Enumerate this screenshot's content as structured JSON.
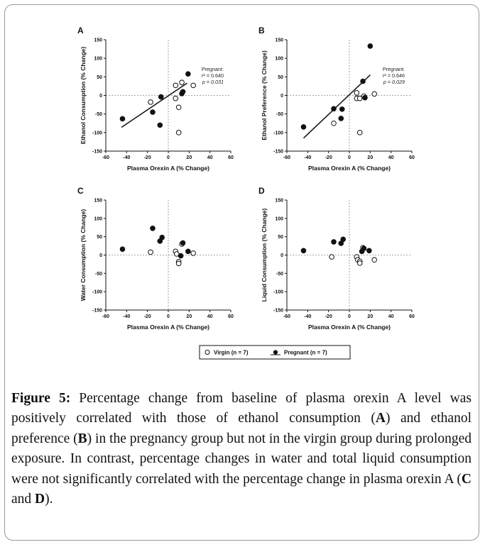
{
  "figure": {
    "x_axis_label": "Plasma Orexin A (% Change)",
    "legend": {
      "virgin": "Virgin (n = 7)",
      "pregnant": "Pregnant (n = 7)"
    }
  },
  "caption": {
    "label": "Figure 5:",
    "t1": " Percentage change from baseline of plasma orexin A level was positively correlated with those of ethanol consumption (",
    "a": "A",
    "t2": ") and ethanol preference (",
    "b": "B",
    "t3": ") in the pregnancy group but not in the virgin group during prolonged exposure. In contrast, percentage changes in water and total liquid consumption were not significantly correlated with the percentage change in plasma orexin A (",
    "c": "C",
    "t4": " and ",
    "d": "D",
    "t5": ")."
  },
  "chart_data": [
    {
      "type": "scatter",
      "panel": "A",
      "xlabel": "Plasma Orexin A (% Change)",
      "ylabel": "Ethanol Consumption (% Change)",
      "xlim": [
        -60,
        60
      ],
      "ylim": [
        -150,
        150
      ],
      "xticks": [
        -60,
        -40,
        -20,
        0,
        20,
        40,
        60
      ],
      "yticks": [
        -150,
        -100,
        -50,
        0,
        50,
        100,
        150
      ],
      "annotation": [
        "Pregnant:",
        "r² = 0.640",
        "p = 0.031"
      ],
      "series": [
        {
          "name": "Virgin (n = 7)",
          "marker": "open",
          "points": [
            [
              -17,
              -18
            ],
            [
              7,
              27
            ],
            [
              7,
              -8
            ],
            [
              10,
              -32
            ],
            [
              13,
              35
            ],
            [
              24,
              27
            ],
            [
              10,
              -100
            ]
          ]
        },
        {
          "name": "Pregnant (n = 7)",
          "marker": "filled",
          "points": [
            [
              -44,
              -63
            ],
            [
              -15,
              -45
            ],
            [
              -7,
              -4
            ],
            [
              -8,
              -80
            ],
            [
              13,
              5
            ],
            [
              14,
              10
            ],
            [
              19,
              58
            ]
          ]
        }
      ],
      "fit": {
        "series": "Pregnant (n = 7)",
        "from": [
          -45,
          -86
        ],
        "to": [
          18,
          33
        ]
      }
    },
    {
      "type": "scatter",
      "panel": "B",
      "xlabel": "Plasma Orexin A (% Change)",
      "ylabel": "Ethanol Preference (% Change)",
      "xlim": [
        -60,
        60
      ],
      "ylim": [
        -150,
        150
      ],
      "xticks": [
        -60,
        -40,
        -20,
        0,
        20,
        40,
        60
      ],
      "yticks": [
        -150,
        -100,
        -50,
        0,
        50,
        100,
        150
      ],
      "annotation": [
        "Pregnant:",
        "r² = 0.646",
        "p = 0.029"
      ],
      "series": [
        {
          "name": "Virgin (n = 7)",
          "marker": "open",
          "points": [
            [
              -15,
              -75
            ],
            [
              7,
              7
            ],
            [
              7,
              -8
            ],
            [
              10,
              -8
            ],
            [
              14,
              -2
            ],
            [
              24,
              4
            ],
            [
              10,
              -100
            ]
          ]
        },
        {
          "name": "Pregnant (n = 7)",
          "marker": "filled",
          "points": [
            [
              -44,
              -85
            ],
            [
              -15,
              -36
            ],
            [
              -8,
              -62
            ],
            [
              -7,
              -37
            ],
            [
              13,
              38
            ],
            [
              15,
              -6
            ],
            [
              20,
              133
            ]
          ]
        }
      ],
      "fit": {
        "series": "Pregnant (n = 7)",
        "from": [
          -44,
          -115
        ],
        "to": [
          20,
          55
        ]
      }
    },
    {
      "type": "scatter",
      "panel": "C",
      "xlabel": "Plasma Orexin A (% Change)",
      "ylabel": "Water Consumption (% Change)",
      "xlim": [
        -60,
        60
      ],
      "ylim": [
        -150,
        150
      ],
      "xticks": [
        -60,
        -40,
        -20,
        0,
        20,
        40,
        60
      ],
      "yticks": [
        -150,
        -100,
        -50,
        0,
        50,
        100,
        150
      ],
      "series": [
        {
          "name": "Virgin (n = 7)",
          "marker": "open",
          "points": [
            [
              -17,
              8
            ],
            [
              7,
              10
            ],
            [
              8,
              3
            ],
            [
              10,
              -18
            ],
            [
              10,
              -23
            ],
            [
              13,
              30
            ],
            [
              24,
              5
            ]
          ]
        },
        {
          "name": "Pregnant (n = 7)",
          "marker": "filled",
          "points": [
            [
              -44,
              16
            ],
            [
              -15,
              73
            ],
            [
              -8,
              38
            ],
            [
              -6,
              48
            ],
            [
              12,
              -2
            ],
            [
              14,
              33
            ],
            [
              19,
              10
            ]
          ]
        }
      ]
    },
    {
      "type": "scatter",
      "panel": "D",
      "xlabel": "Plasma Orexin A (% Change)",
      "ylabel": "Liquid Consumption (% Change)",
      "xlim": [
        -60,
        60
      ],
      "ylim": [
        -150,
        150
      ],
      "xticks": [
        -60,
        -40,
        -20,
        0,
        20,
        40,
        60
      ],
      "yticks": [
        -150,
        -100,
        -50,
        0,
        50,
        100,
        150
      ],
      "series": [
        {
          "name": "Virgin (n = 7)",
          "marker": "open",
          "points": [
            [
              -17,
              -5
            ],
            [
              7,
              -5
            ],
            [
              8,
              -13
            ],
            [
              10,
              -17
            ],
            [
              10,
              -22
            ],
            [
              13,
              20
            ],
            [
              24,
              -13
            ]
          ]
        },
        {
          "name": "Pregnant (n = 7)",
          "marker": "filled",
          "points": [
            [
              -44,
              12
            ],
            [
              -15,
              36
            ],
            [
              -8,
              32
            ],
            [
              -6,
              43
            ],
            [
              12,
              10
            ],
            [
              14,
              18
            ],
            [
              19,
              12
            ]
          ]
        }
      ]
    }
  ]
}
